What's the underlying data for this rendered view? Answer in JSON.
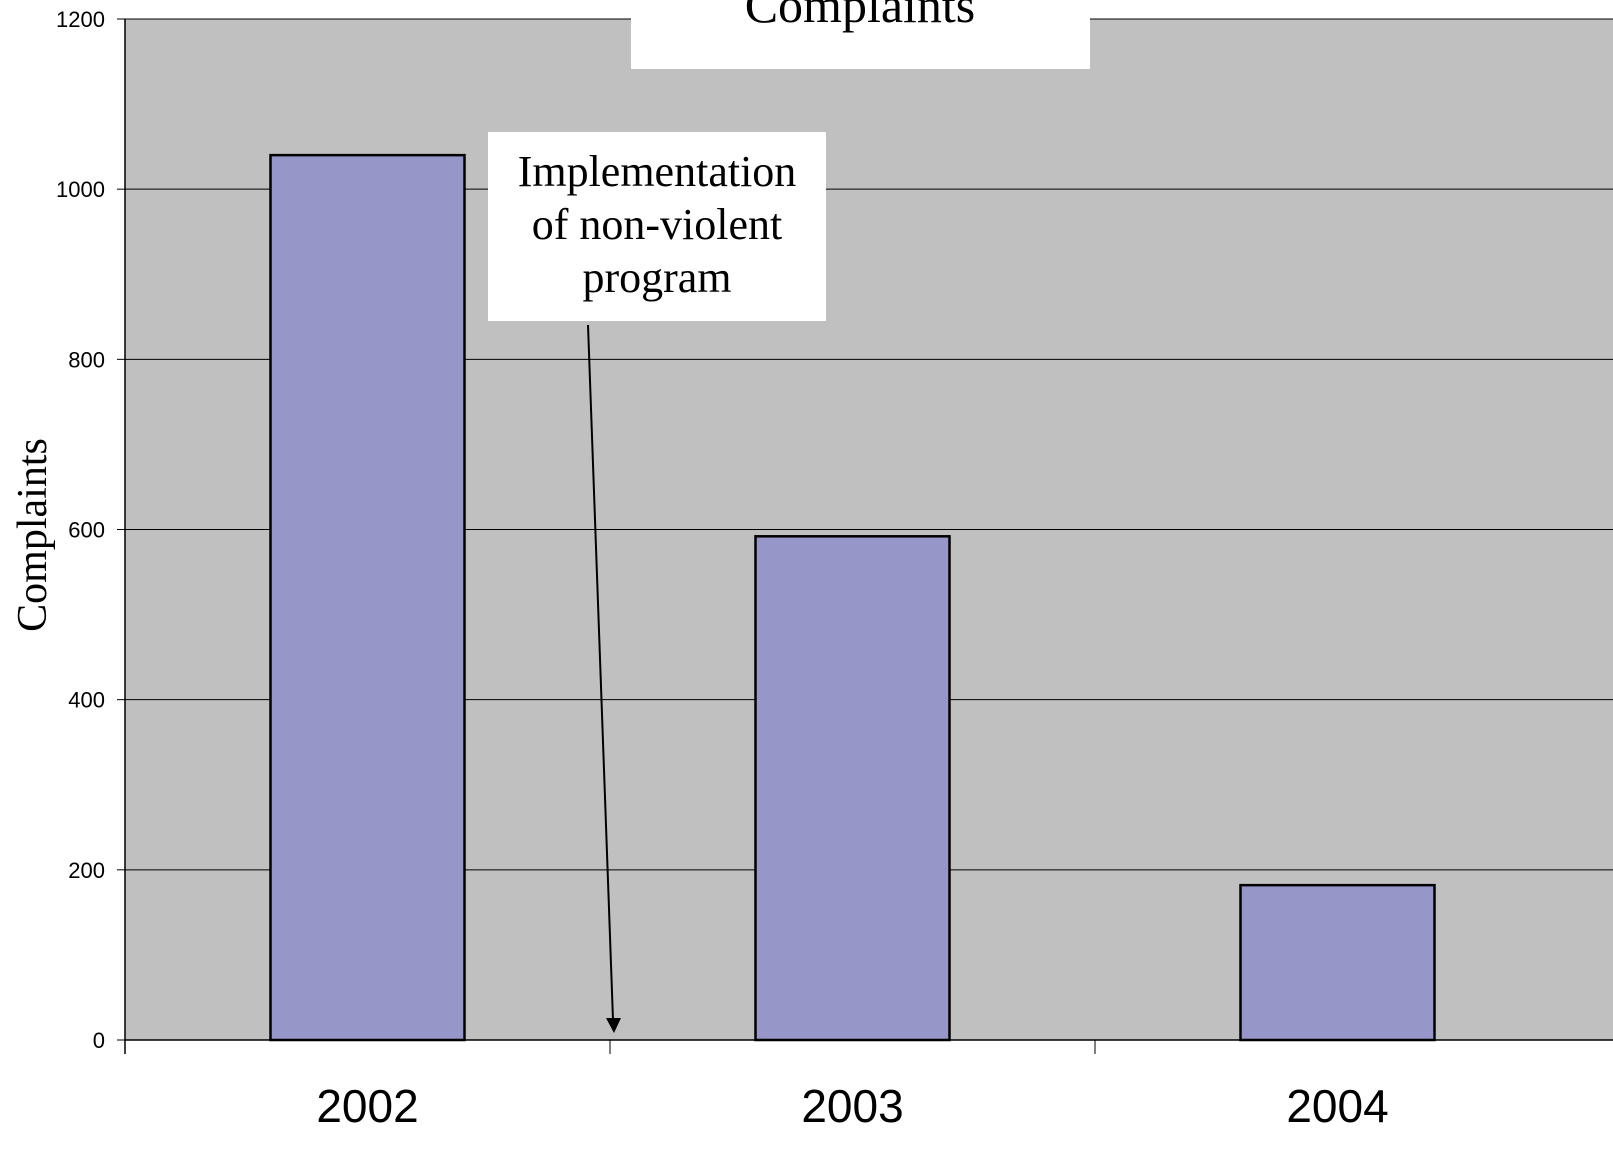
{
  "chart_data": {
    "type": "bar",
    "title": "Complaints",
    "ylabel": "Complaints",
    "xlabel": "",
    "categories": [
      "2002",
      "2003",
      "2004"
    ],
    "values": [
      1040,
      592,
      182
    ],
    "ylim": [
      0,
      1200
    ],
    "yticks": [
      0,
      200,
      400,
      600,
      800,
      1000,
      1200
    ],
    "grid": true,
    "annotation": {
      "lines": [
        "Implementation",
        "of non-violent",
        "program"
      ],
      "arrow_target_x": "between 2002 and 2003"
    },
    "colors": {
      "bar_fill": "#9696c8",
      "plot_background": "#c0c0c0",
      "gridline": "#000000"
    }
  }
}
